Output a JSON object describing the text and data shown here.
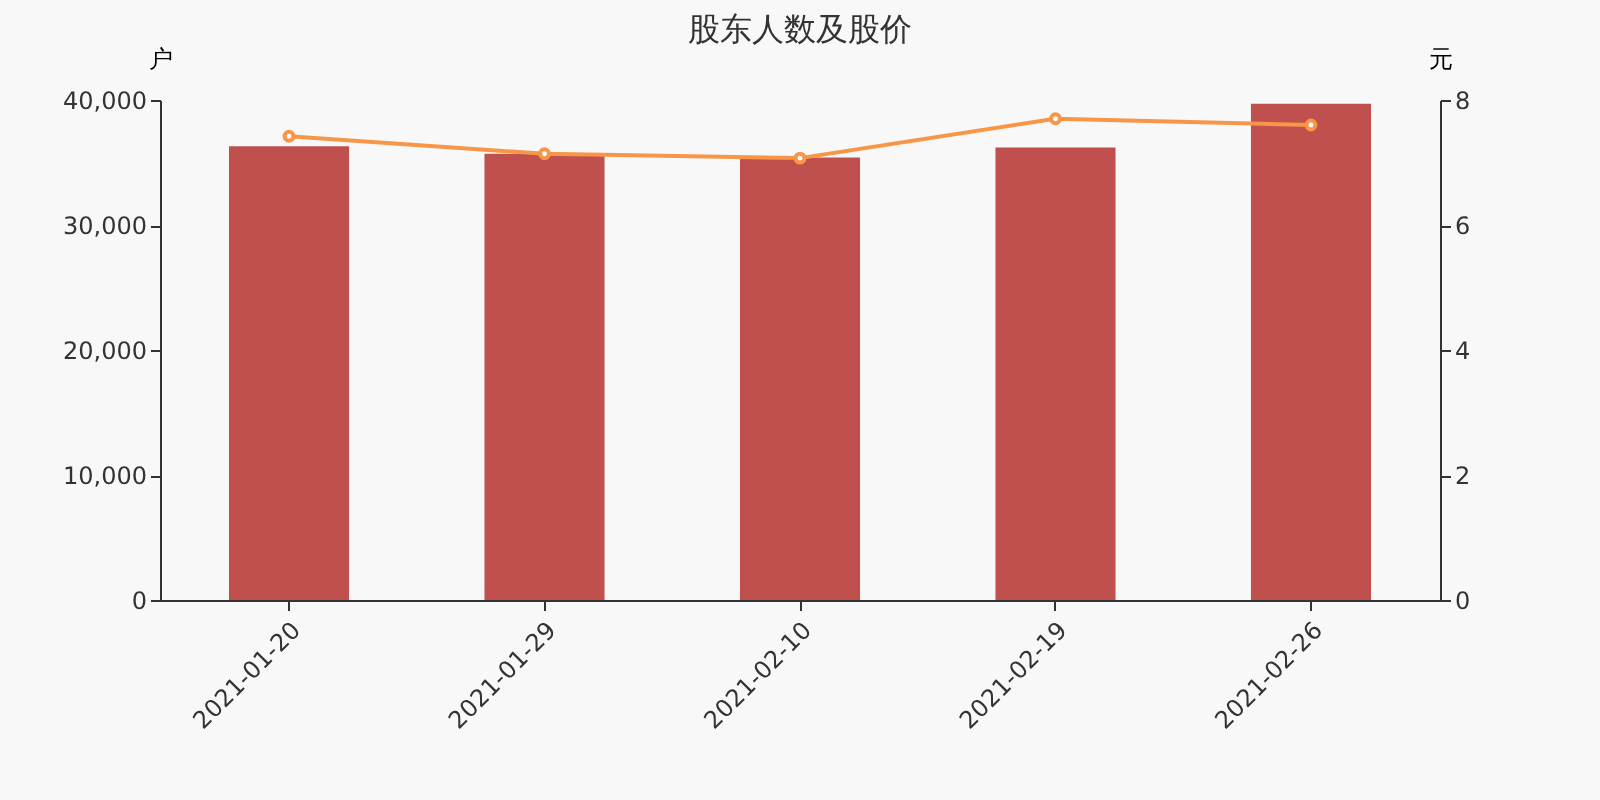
{
  "chart_data": {
    "type": "bar",
    "title": "股东人数及股价",
    "ylabel": "户",
    "y2label": "元",
    "categories": [
      "2021-01-20",
      "2021-01-29",
      "2021-02-10",
      "2021-02-19",
      "2021-02-26"
    ],
    "series": [
      {
        "color": "#c0504d",
        "values": [
          36300,
          35700,
          35400,
          36200,
          39700
        ]
      },
      {
        "type": "line",
        "axis": "y2",
        "color": "#f79646",
        "marker": "circle",
        "values": [
          7.42,
          7.14,
          7.07,
          7.7,
          7.6
        ]
      }
    ],
    "ylim": [
      0,
      40000
    ],
    "yticks": [
      0,
      {
        "value": 10000,
        "label": "10,000"
      },
      {
        "value": 20000,
        "label": "20,000"
      },
      {
        "value": 30000,
        "label": "30,000"
      },
      {
        "value": 40000,
        "label": "40,000"
      }
    ],
    "y2lim": [
      0,
      8
    ],
    "y2ticks": [
      0,
      2,
      4,
      6,
      8
    ],
    "grid": false
  }
}
